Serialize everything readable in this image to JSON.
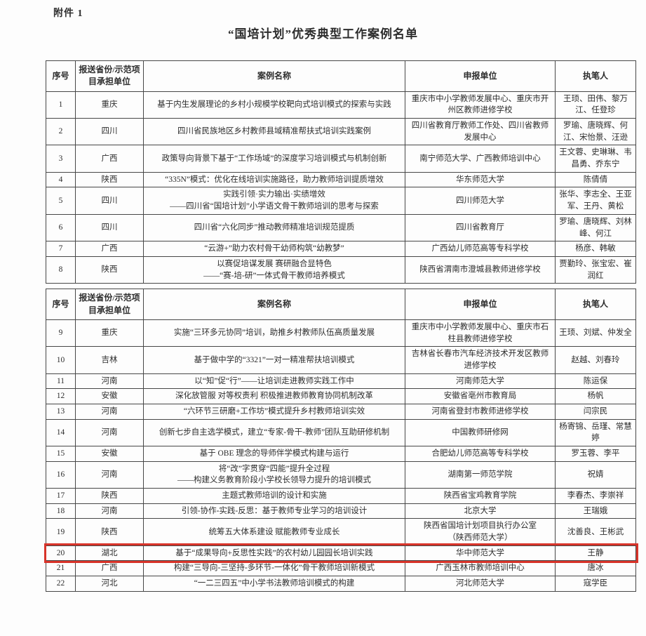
{
  "page": {
    "attachment_label": "附件 1",
    "title": "“国培计划”优秀典型工作案例名单"
  },
  "highlight_color": "#d8342a",
  "columns": [
    "序号",
    "报送省份/示范项目承担单位",
    "案例名称",
    "申报单位",
    "执笔人"
  ],
  "row_keys": [
    "seq",
    "province",
    "case",
    "unit",
    "authors"
  ],
  "tables": [
    {
      "rows": [
        {
          "seq": "1",
          "province": "重庆",
          "case": "基于内生发展理论的乡村小规模学校靶向式培训模式的探索与实践",
          "unit": "重庆市中小学教师发展中心、重庆市开州区教师进修学校",
          "authors": "王顼、田伟、黎万江、任登珍",
          "highlight": false
        },
        {
          "seq": "2",
          "province": "四川",
          "case": "四川省民族地区乡村教师县域精准帮扶式培训实践案例",
          "unit": "四川省教育厅教师工作处、四川省教师发展中心",
          "authors": "罗瑜、唐晓辉、何江、宋怡景、汪逊",
          "highlight": false
        },
        {
          "seq": "3",
          "province": "广西",
          "case": "政策导向背景下基于“工作场域”的深度学习培训模式与机制创新",
          "unit": "南宁师范大学、广西教师培训中心",
          "authors": "王文蓉、史琳琳、韦昌勇、乔东宁",
          "highlight": false
        },
        {
          "seq": "4",
          "province": "陕西",
          "case": "“335N”模式：优化在线培训实施路径，助力教师培训提质增效",
          "unit": "华东师范大学",
          "authors": "陈倩倩",
          "highlight": false
        },
        {
          "seq": "5",
          "province": "四川",
          "case": "实践引领·实力输出·实绩增效\n——四川省“国培计划”小学语文骨干教师培训的思考与探索",
          "unit": "四川师范大学",
          "authors": "张华、李志全、王亚军、王丹、黄松",
          "highlight": false
        },
        {
          "seq": "6",
          "province": "四川",
          "case": "四川省“六化同步”推动教师精准培训规范提质",
          "unit": "四川省教育厅",
          "authors": "罗瑜、唐晓辉、刘林峰、何江",
          "highlight": false
        },
        {
          "seq": "7",
          "province": "广西",
          "case": "“云游+”助力农村骨干幼师构筑“幼教梦”",
          "unit": "广西幼儿师范高等专科学校",
          "authors": "杨彦、韩敏",
          "highlight": false
        },
        {
          "seq": "8",
          "province": "陕西",
          "case": "以赛促培谋发展 赛研融合显特色\n——“赛-培-研”一体式骨干教师培养模式",
          "unit": "陕西省渭南市澄城县教师进修学校",
          "authors": "贾勤玲、张宝宏、崔润红",
          "highlight": false
        }
      ]
    },
    {
      "rows": [
        {
          "seq": "9",
          "province": "重庆",
          "case": "实施“三环多元协同”培训，助推乡村教师队伍高质量发展",
          "unit": "重庆市中小学教师发展中心、重庆市石柱县教师进修学校",
          "authors": "王顼、刘斌、仲发全",
          "highlight": false
        },
        {
          "seq": "10",
          "province": "吉林",
          "case": "基于做中学的“3321”一对一精准帮扶培训模式",
          "unit": "吉林省长春市汽车经济技术开发区教师进修学校",
          "authors": "赵越、刘春玲",
          "highlight": false
        },
        {
          "seq": "11",
          "province": "河南",
          "case": "以“知”促“行”——让培训走进教师实践工作中",
          "unit": "河南师范大学",
          "authors": "陈运保",
          "highlight": false
        },
        {
          "seq": "12",
          "province": "安徽",
          "case": "深化放管服 对等权责利 积极推进教师教育协同机制改革",
          "unit": "安徽省亳州市教育局",
          "authors": "杨帆",
          "highlight": false
        },
        {
          "seq": "13",
          "province": "河南",
          "case": "“六环节三研磨+工作坊”模式提升乡村教师培训实效",
          "unit": "河南省登封市教师进修学校",
          "authors": "闫宗民",
          "highlight": false
        },
        {
          "seq": "14",
          "province": "河南",
          "case": "创新七步自主选学模式，建立“专家-骨干-教师”团队互助研修机制",
          "unit": "中国教师研修网",
          "authors": "杨寄锦、岳瑾、常慧婷",
          "highlight": false
        },
        {
          "seq": "15",
          "province": "安徽",
          "case": "基于 OBE 理念的导师伴学模式构建与运行",
          "unit": "合肥幼儿师范高等专科学校",
          "authors": "罗玉蓉、李平",
          "highlight": false
        },
        {
          "seq": "16",
          "province": "河南",
          "case": "将“改”字贯穿“四能”提升全过程\n——构建义务教育阶段小学校长领导力提升的培训模式",
          "unit": "湖南第一师范学院",
          "authors": "祝婧",
          "highlight": false
        },
        {
          "seq": "17",
          "province": "陕西",
          "case": "主题式教师培训的设计和实施",
          "unit": "陕西省宝鸡教育学院",
          "authors": "李春杰、李崇祥",
          "highlight": false
        },
        {
          "seq": "18",
          "province": "河南",
          "case": "引领-协作-实践-反思：基于教师专业学习的培训设计",
          "unit": "北京大学",
          "authors": "王瑞娥",
          "highlight": false
        },
        {
          "seq": "19",
          "province": "陕西",
          "case": "统筹五大体系建设 赋能教师专业成长",
          "unit": "陕西省国培计划项目执行办公室\n（陕西师范大学）",
          "authors": "沈善良、王彬武",
          "highlight": false
        },
        {
          "seq": "20",
          "province": "湖北",
          "case": "基于“成果导向+反思性实践”的农村幼儿园园长培训实践",
          "unit": "华中师范大学",
          "authors": "王静",
          "highlight": true
        },
        {
          "seq": "21",
          "province": "广西",
          "case": "构建“三导向-三坚持-多环节-一体化”骨干教师培训新模式",
          "unit": "广西玉林市教师培训中心",
          "authors": "唐冰",
          "highlight": false
        },
        {
          "seq": "22",
          "province": "河北",
          "case": "“一二三四五”中小学书法教师培训模式的构建",
          "unit": "河北师范大学",
          "authors": "寇学臣",
          "highlight": false
        }
      ]
    }
  ]
}
